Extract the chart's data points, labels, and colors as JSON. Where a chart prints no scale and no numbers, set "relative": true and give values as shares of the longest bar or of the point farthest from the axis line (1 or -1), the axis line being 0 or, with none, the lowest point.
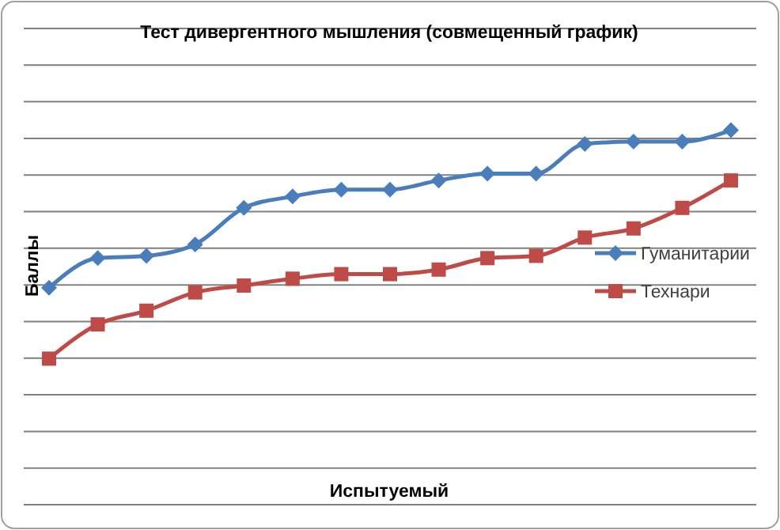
{
  "chart_data": {
    "type": "line",
    "title": "Тест дивергентного мышления (совмещенный график)",
    "annotations": [
      "Испытуемый"
    ],
    "ylabel": "Баллы",
    "relative": true,
    "grid": "y",
    "legend": "right",
    "line_style": "solid",
    "categories": [
      null,
      null,
      null,
      null,
      null,
      null,
      null,
      null,
      null,
      null,
      null,
      null,
      null,
      null,
      null
    ],
    "series": [
      {
        "name": "Гуманитарии",
        "color": "#4a7ebb",
        "marker": "diamond",
        "values": [
          0.31,
          0.44,
          0.45,
          0.5,
          0.66,
          0.71,
          0.74,
          0.74,
          0.78,
          0.81,
          0.81,
          0.94,
          0.95,
          0.95,
          1
        ]
      },
      {
        "name": "Технари",
        "color": "#be4b48",
        "marker": "square",
        "values": [
          0,
          0.15,
          0.21,
          0.29,
          0.32,
          0.35,
          0.37,
          0.37,
          0.39,
          0.44,
          0.45,
          0.53,
          0.57,
          0.66,
          0.78
        ]
      }
    ]
  }
}
